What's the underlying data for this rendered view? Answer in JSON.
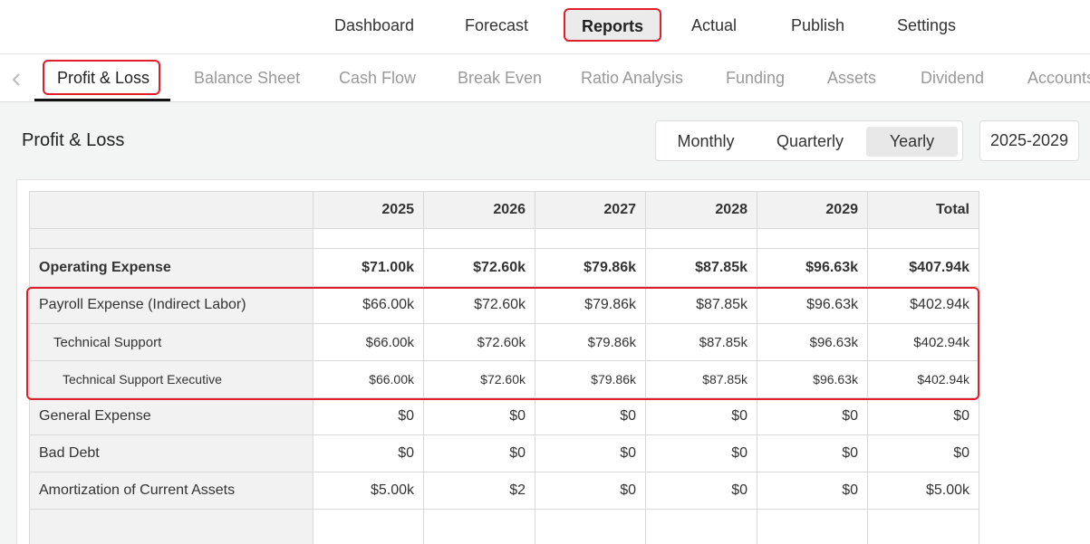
{
  "top_nav": {
    "items": [
      "Dashboard",
      "Forecast",
      "Reports",
      "Actual",
      "Publish",
      "Settings"
    ],
    "active": "Reports"
  },
  "sub_nav": {
    "tabs": [
      "Profit & Loss",
      "Balance Sheet",
      "Cash Flow",
      "Break Even",
      "Ratio Analysis",
      "Funding",
      "Assets",
      "Dividend",
      "Accounts"
    ],
    "active": "Profit & Loss"
  },
  "page": {
    "title": "Profit & Loss",
    "period_options": [
      "Monthly",
      "Quarterly",
      "Yearly"
    ],
    "period_selected": "Yearly",
    "range": "2025-2029"
  },
  "table": {
    "headers": [
      "",
      "2025",
      "2026",
      "2027",
      "2028",
      "2029",
      "Total"
    ],
    "rows": [
      {
        "label": "",
        "values": [
          "",
          "",
          "",
          "",
          "",
          ""
        ]
      },
      {
        "label": "Operating Expense",
        "values": [
          "$71.00k",
          "$72.60k",
          "$79.86k",
          "$87.85k",
          "$96.63k",
          "$407.94k"
        ]
      },
      {
        "label": "Payroll Expense (Indirect Labor)",
        "values": [
          "$66.00k",
          "$72.60k",
          "$79.86k",
          "$87.85k",
          "$96.63k",
          "$402.94k"
        ]
      },
      {
        "label": "Technical Support",
        "values": [
          "$66.00k",
          "$72.60k",
          "$79.86k",
          "$87.85k",
          "$96.63k",
          "$402.94k"
        ]
      },
      {
        "label": "Technical Support Executive",
        "values": [
          "$66.00k",
          "$72.60k",
          "$79.86k",
          "$87.85k",
          "$96.63k",
          "$402.94k"
        ]
      },
      {
        "label": "General Expense",
        "values": [
          "$0",
          "$0",
          "$0",
          "$0",
          "$0",
          "$0"
        ]
      },
      {
        "label": "Bad Debt",
        "values": [
          "$0",
          "$0",
          "$0",
          "$0",
          "$0",
          "$0"
        ]
      },
      {
        "label": "Amortization of Current Assets",
        "values": [
          "$5.00k",
          "$2",
          "$0",
          "$0",
          "$0",
          "$5.00k"
        ]
      },
      {
        "label": "",
        "values": [
          "",
          "",
          "",
          "",
          "",
          ""
        ]
      }
    ]
  },
  "colors": {
    "highlight": "#e21e2d",
    "label_bg": "#f2f2f2",
    "content_bg": "#f3f4f4"
  }
}
